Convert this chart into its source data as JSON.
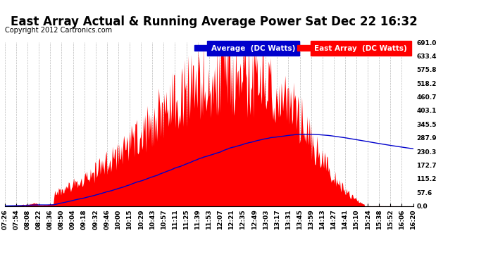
{
  "title": "East Array Actual & Running Average Power Sat Dec 22 16:32",
  "copyright": "Copyright 2012 Cartronics.com",
  "ymax": 691.0,
  "ymin": 0.0,
  "yticks": [
    0.0,
    57.6,
    115.2,
    172.7,
    230.3,
    287.9,
    345.5,
    403.1,
    460.7,
    518.2,
    575.8,
    633.4,
    691.0
  ],
  "xtick_labels": [
    "07:26",
    "07:54",
    "08:08",
    "08:22",
    "08:36",
    "08:50",
    "09:04",
    "09:18",
    "09:32",
    "09:46",
    "10:00",
    "10:15",
    "10:29",
    "10:43",
    "10:57",
    "11:11",
    "11:25",
    "11:39",
    "11:53",
    "12:07",
    "12:21",
    "12:35",
    "12:49",
    "13:03",
    "13:17",
    "13:31",
    "13:45",
    "13:59",
    "14:13",
    "14:27",
    "14:41",
    "15:10",
    "15:24",
    "15:38",
    "15:52",
    "16:06",
    "16:20"
  ],
  "bg_color": "#ffffff",
  "plot_bg_color": "#ffffff",
  "grid_color": "#bbbbbb",
  "area_color": "#ff0000",
  "avg_line_color": "#0000cc",
  "legend_avg_bg": "#0000cc",
  "legend_east_bg": "#ff0000",
  "title_fontsize": 12,
  "copyright_fontsize": 7,
  "tick_fontsize": 6.5,
  "legend_fontsize": 7.5
}
